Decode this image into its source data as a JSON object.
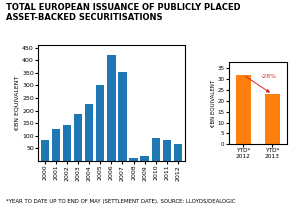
{
  "chart_data": [
    {
      "type": "bar",
      "title": "TOTAL EUROPEAN ISSUANCE OF PUBLICLY PLACED\nASSET-BACKED SECURITISATIONS",
      "footnote": "*YEAR TO DATE UP TO END OF MAY (SETTLEMENT DATE). SOURCE: LLOYDS/DEALOGIC",
      "categories": [
        "2000",
        "2001",
        "2002",
        "2003",
        "2004",
        "2005",
        "2006",
        "2007",
        "2008",
        "2009",
        "2010",
        "2011",
        "2012"
      ],
      "values": [
        82,
        128,
        143,
        187,
        227,
        300,
        420,
        355,
        12,
        18,
        92,
        83,
        68
      ],
      "y_label": "€BN EQUIVALENT",
      "ylim": [
        0,
        460
      ],
      "yticks": [
        50,
        100,
        150,
        200,
        250,
        300,
        350,
        400,
        450
      ]
    },
    {
      "type": "bar",
      "categories": [
        "YTD*\n2012",
        "YTD*\n2013"
      ],
      "values": [
        32,
        23
      ],
      "y_label": "€BN EQUIVALENT",
      "ylim": [
        0,
        38
      ],
      "yticks": [
        0,
        5,
        10,
        15,
        20,
        25,
        30,
        35
      ],
      "annotation": "-28%"
    }
  ]
}
